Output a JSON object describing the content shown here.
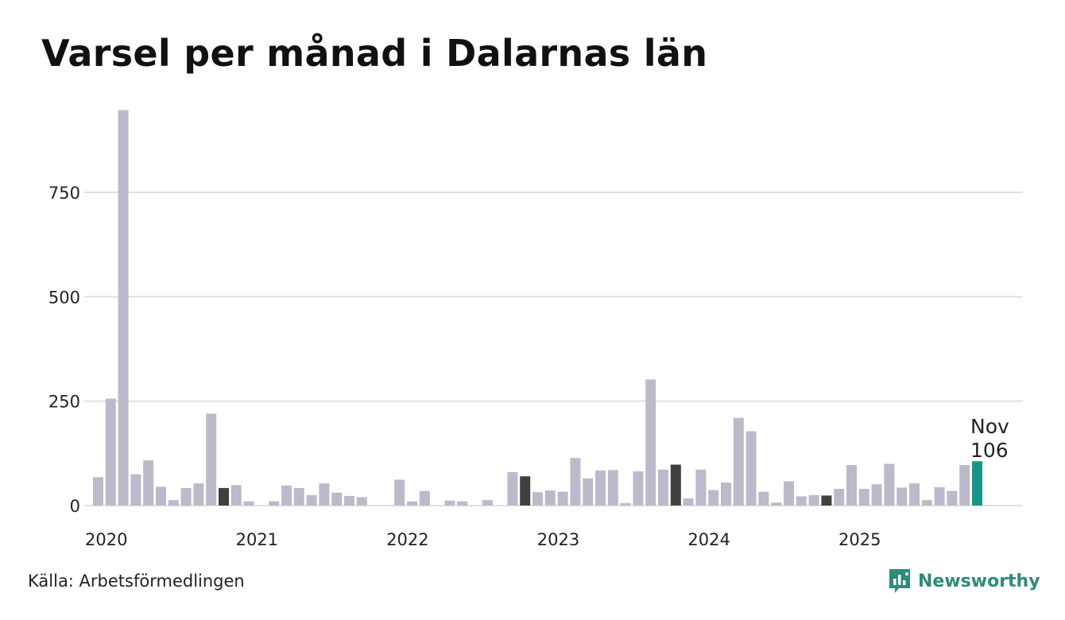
{
  "title": "Varsel per månad i Dalarnas län",
  "source": "Källa: Arbetsförmedlingen",
  "brand": {
    "name": "Newsworthy",
    "icon": "newsworthy-logo-icon",
    "color": "#2e8b78"
  },
  "colors": {
    "default": "#bcbaca",
    "november": "#404040",
    "latest": "#16968a",
    "grid": "#e0e0e0"
  },
  "chart_data": {
    "type": "bar",
    "title": "Varsel per månad i Dalarnas län",
    "xlabel": "",
    "ylabel": "",
    "ylim": [
      0,
      950
    ],
    "y_ticks": [
      0,
      250,
      500,
      750
    ],
    "x_ticks": [
      "2020",
      "2021",
      "2022",
      "2023",
      "2024",
      "2025"
    ],
    "start_month": "2020-01",
    "values": [
      68,
      256,
      947,
      75,
      108,
      45,
      13,
      42,
      53,
      220,
      42,
      49,
      10,
      0,
      10,
      48,
      42,
      25,
      53,
      31,
      23,
      20,
      0,
      0,
      62,
      10,
      35,
      0,
      12,
      10,
      0,
      13,
      0,
      80,
      70,
      32,
      36,
      33,
      114,
      65,
      84,
      85,
      6,
      82,
      302,
      86,
      98,
      17,
      86,
      37,
      55,
      210,
      178,
      33,
      7,
      58,
      22,
      25,
      24,
      40,
      97,
      40,
      51,
      100,
      43,
      53,
      13,
      44,
      35,
      97,
      106
    ],
    "highlight": {
      "month": "Nov",
      "value": "106"
    }
  }
}
